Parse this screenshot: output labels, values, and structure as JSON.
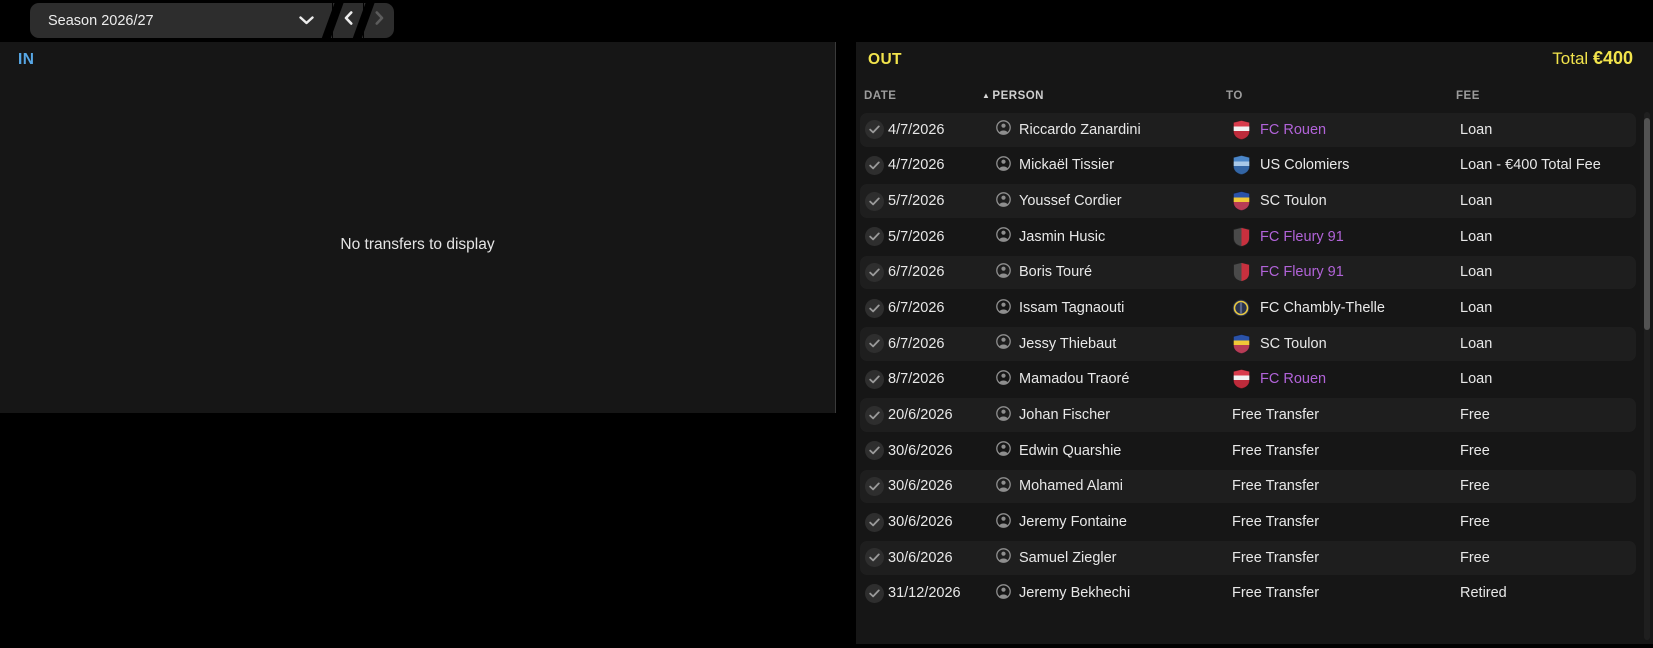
{
  "toolbar": {
    "season_selector": {
      "label": "Season 2026/27",
      "icon": "chevron-down-icon"
    },
    "back_button": {
      "icon": "chevron-left-icon",
      "enabled": true
    },
    "forward_button": {
      "icon": "chevron-right-icon",
      "enabled": false
    }
  },
  "in_panel": {
    "title": "IN",
    "empty_message": "No transfers to display"
  },
  "out_panel": {
    "title": "OUT",
    "total_label": "Total",
    "total_value": "€400",
    "columns": {
      "date": "DATE",
      "person": "PERSON",
      "to": "TO",
      "fee": "FEE"
    },
    "sorted_by": "PERSON",
    "sort_icon": "sort-ascending-icon",
    "row_icons": {
      "status": "check-circle-icon",
      "person": "person-icon"
    },
    "rows": [
      {
        "date": "4/7/2026",
        "person": "Riccardo Zanardini",
        "to": "FC Rouen",
        "badge": "fc-rouen",
        "to_link": true,
        "fee": "Loan"
      },
      {
        "date": "4/7/2026",
        "person": "Mickaël Tissier",
        "to": "US Colomiers",
        "badge": "us-colomiers",
        "to_link": false,
        "fee": "Loan - €400 Total Fee"
      },
      {
        "date": "5/7/2026",
        "person": "Youssef Cordier",
        "to": "SC Toulon",
        "badge": "sc-toulon",
        "to_link": false,
        "fee": "Loan"
      },
      {
        "date": "5/7/2026",
        "person": "Jasmin Husic",
        "to": "FC Fleury 91",
        "badge": "fc-fleury-91",
        "to_link": true,
        "fee": "Loan"
      },
      {
        "date": "6/7/2026",
        "person": "Boris Touré",
        "to": "FC Fleury 91",
        "badge": "fc-fleury-91",
        "to_link": true,
        "fee": "Loan"
      },
      {
        "date": "6/7/2026",
        "person": "Issam Tagnaouti",
        "to": "FC Chambly-Thelle",
        "badge": "fc-chambly-thelle",
        "to_link": false,
        "fee": "Loan"
      },
      {
        "date": "6/7/2026",
        "person": "Jessy Thiebaut",
        "to": "SC Toulon",
        "badge": "sc-toulon",
        "to_link": false,
        "fee": "Loan"
      },
      {
        "date": "8/7/2026",
        "person": "Mamadou Traoré",
        "to": "FC Rouen",
        "badge": "fc-rouen",
        "to_link": true,
        "fee": "Loan"
      },
      {
        "date": "20/6/2026",
        "person": "Johan Fischer",
        "to": "Free Transfer",
        "badge": null,
        "to_link": false,
        "fee": "Free"
      },
      {
        "date": "30/6/2026",
        "person": "Edwin Quarshie",
        "to": "Free Transfer",
        "badge": null,
        "to_link": false,
        "fee": "Free"
      },
      {
        "date": "30/6/2026",
        "person": "Mohamed Alami",
        "to": "Free Transfer",
        "badge": null,
        "to_link": false,
        "fee": "Free"
      },
      {
        "date": "30/6/2026",
        "person": "Jeremy Fontaine",
        "to": "Free Transfer",
        "badge": null,
        "to_link": false,
        "fee": "Free"
      },
      {
        "date": "30/6/2026",
        "person": "Samuel Ziegler",
        "to": "Free Transfer",
        "badge": null,
        "to_link": false,
        "fee": "Free"
      },
      {
        "date": "31/12/2026",
        "person": "Jeremy Bekhechi",
        "to": "Free Transfer",
        "badge": null,
        "to_link": false,
        "fee": "Retired"
      }
    ]
  },
  "club_badges": {
    "fc-rouen": {
      "shape": "shield",
      "pattern": "band",
      "colors": [
        "#d83c4c",
        "#f2f2f2",
        "#b82838"
      ]
    },
    "us-colomiers": {
      "shape": "shield",
      "pattern": "band",
      "colors": [
        "#4b86c8",
        "#a8c8e8",
        "#2f5f9e"
      ]
    },
    "sc-toulon": {
      "shape": "shield",
      "pattern": "band",
      "colors": [
        "#2a52a8",
        "#f0c838",
        "#d03848"
      ]
    },
    "fc-fleury-91": {
      "shape": "shield",
      "pattern": "split",
      "colors": [
        "#4a4a4a",
        "#c8303e",
        "#202020"
      ]
    },
    "fc-chambly-thelle": {
      "shape": "circle",
      "pattern": "rings",
      "colors": [
        "#28324e",
        "#e8c840",
        "#5a6688"
      ]
    }
  },
  "colors": {
    "in_accent": "#57a7e6",
    "out_accent": "#f2e44c",
    "club_link": "#b163d8",
    "panel_bg": "#161616",
    "row_alt_bg": "#1e1e1e",
    "text": "#e8e8e8",
    "header_text": "#9c9c9c"
  }
}
